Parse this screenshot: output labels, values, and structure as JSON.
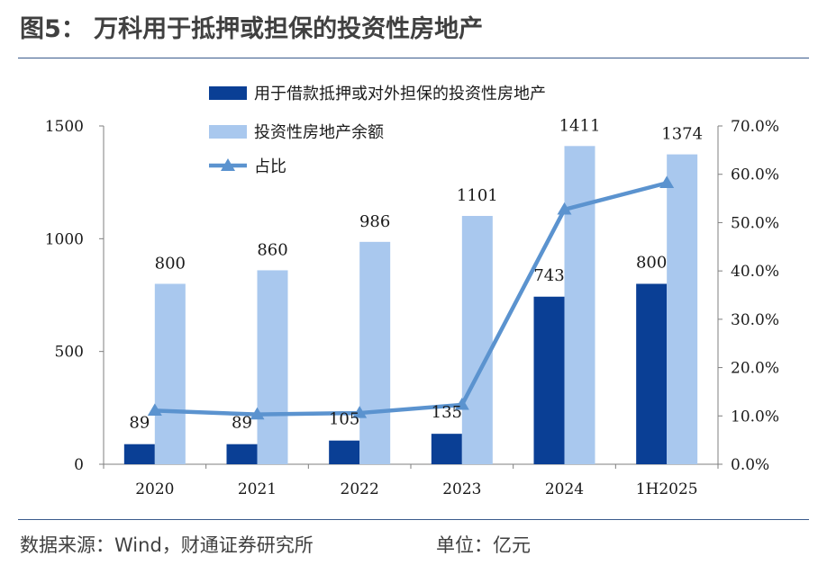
{
  "header": {
    "title": "图5：  万科用于抵押或担保的投资性房地产"
  },
  "footer": {
    "source": "数据来源：Wind，财通证券研究所",
    "unit": "单位：亿元"
  },
  "colors": {
    "dark_bar": "#0a3f95",
    "light_bar": "#a9c8ee",
    "line": "#5b93cf",
    "rule": "#3a5a8c"
  },
  "chart_data": {
    "type": "bar",
    "categories": [
      "2020",
      "2021",
      "2022",
      "2023",
      "2024",
      "1H2025"
    ],
    "series": [
      {
        "name": "用于借款抵押或对外担保的投资性房地产",
        "kind": "bar",
        "axis": "left",
        "values": [
          89,
          89,
          105,
          135,
          743,
          800
        ],
        "labels": [
          "89",
          "89",
          "105",
          "135",
          "743",
          "800"
        ]
      },
      {
        "name": "投资性房地产余额",
        "kind": "bar",
        "axis": "left",
        "values": [
          800,
          860,
          986,
          1101,
          1411,
          1374
        ],
        "labels": [
          "800",
          "860",
          "986",
          "1101",
          "1411",
          "1374"
        ]
      },
      {
        "name": "占比",
        "kind": "line",
        "axis": "right",
        "values": [
          11.1,
          10.3,
          10.6,
          12.3,
          52.7,
          58.2
        ]
      }
    ],
    "yleft": {
      "range": [
        0,
        1500
      ],
      "ticks": [
        "0",
        "500",
        "1000",
        "1500"
      ]
    },
    "yright": {
      "range": [
        0,
        70
      ],
      "ticks": [
        "0.0%",
        "10.0%",
        "20.0%",
        "30.0%",
        "40.0%",
        "50.0%",
        "60.0%",
        "70.0%"
      ]
    },
    "legend": "top-center",
    "grid": false
  }
}
